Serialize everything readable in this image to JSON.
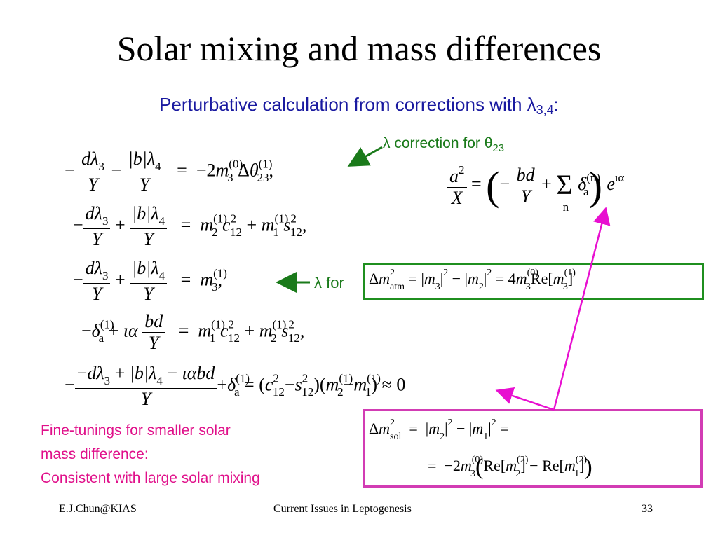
{
  "slide": {
    "title": "Solar mixing and mass differences",
    "subtitle_prefix": "Perturbative calculation from corrections with ",
    "subtitle_lambda": "λ",
    "subtitle_sub": "3,4",
    "subtitle_suffix": ":"
  },
  "notes": {
    "lambda_correction": "λ correction for θ",
    "lambda_correction_sub": "23",
    "lambda_for": "λ for",
    "fine_tuning_line1": "Fine-tunings for smaller solar",
    "fine_tuning_line2": "mass difference:",
    "fine_tuning_line3": "Consistent with large solar mixing"
  },
  "colors": {
    "subtitle": "#1a1aa0",
    "green": "#1a7a1a",
    "pink": "#e0108a"
  },
  "footer": {
    "left": "E.J.Chun@KIAS",
    "center": "Current Issues in Leptogenesis",
    "page": "33"
  }
}
